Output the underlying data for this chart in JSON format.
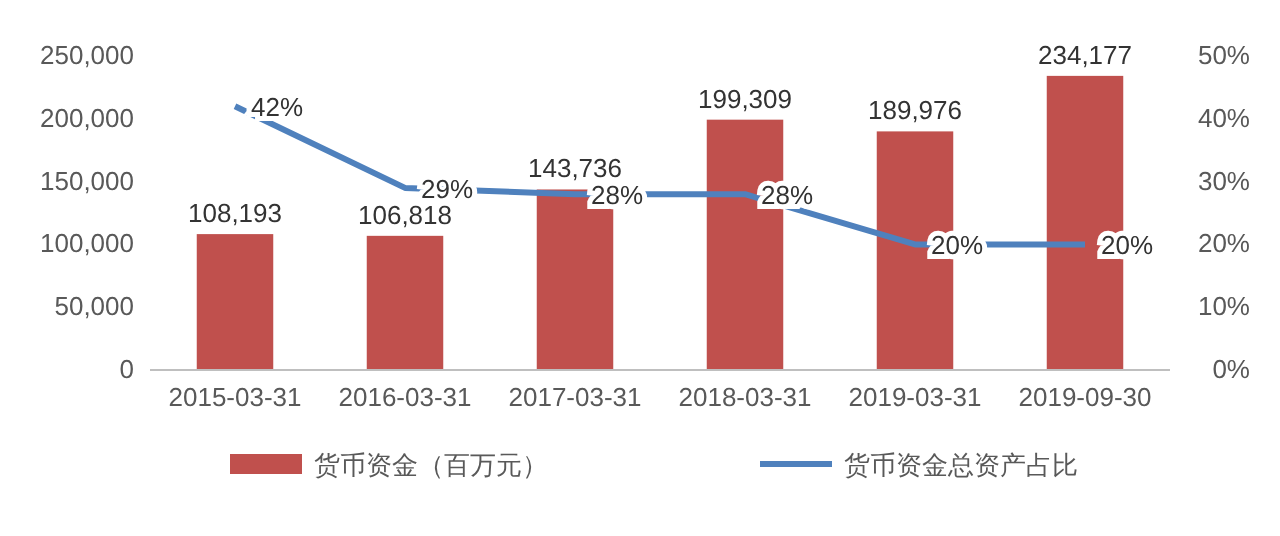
{
  "chart_data": {
    "type": "bar",
    "categories": [
      "2015-03-31",
      "2016-03-31",
      "2017-03-31",
      "2018-03-31",
      "2019-03-31",
      "2019-09-30"
    ],
    "series": [
      {
        "name": "货币资金（百万元）",
        "color": "#c0504d",
        "values": [
          108193,
          106818,
          143736,
          199309,
          189976,
          234177
        ],
        "value_labels": [
          "108,193",
          "106,818",
          "143,736",
          "199,309",
          "189,976",
          "234,177"
        ]
      },
      {
        "name": "货币资金总资产占比",
        "type": "line",
        "axis": "y2",
        "color": "#4f81bd",
        "values": [
          42,
          29,
          28,
          28,
          20,
          20
        ],
        "value_labels": [
          "42%",
          "29%",
          "28%",
          "28%",
          "20%",
          "20%"
        ]
      }
    ],
    "ylim": [
      0,
      250000
    ],
    "yticks": [
      {
        "value": 0,
        "label": "0"
      },
      {
        "value": 50000,
        "label": "50,000"
      },
      {
        "value": 100000,
        "label": "100,000"
      },
      {
        "value": 150000,
        "label": "150,000"
      },
      {
        "value": 200000,
        "label": "200,000"
      },
      {
        "value": 250000,
        "label": "250,000"
      }
    ],
    "y2lim": [
      0,
      50
    ],
    "y2ticks": [
      {
        "value": 0,
        "label": "0%"
      },
      {
        "value": 10,
        "label": "10%"
      },
      {
        "value": 20,
        "label": "20%"
      },
      {
        "value": 30,
        "label": "30%"
      },
      {
        "value": 40,
        "label": "40%"
      },
      {
        "value": 50,
        "label": "50%"
      }
    ],
    "legend": "bottom",
    "marker": "none",
    "line_style": "solid"
  }
}
